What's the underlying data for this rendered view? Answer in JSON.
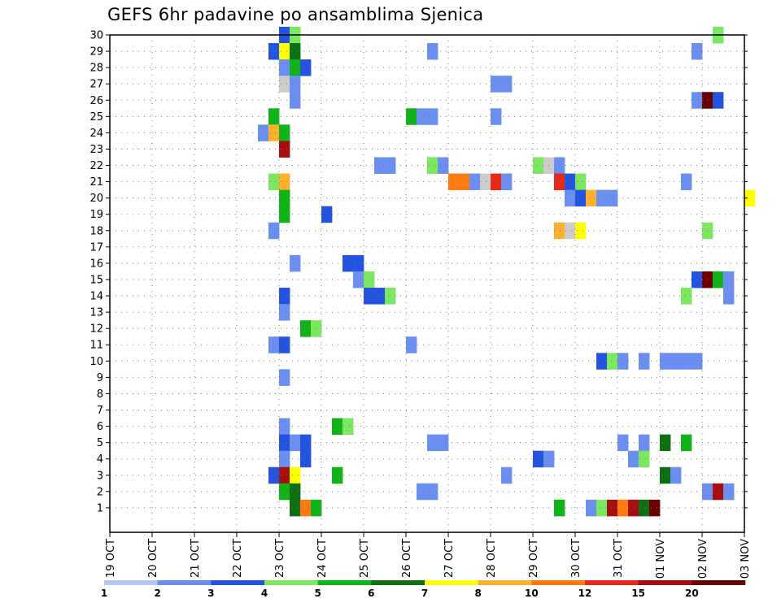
{
  "chart_data": {
    "type": "heatmap",
    "title": "GEFS 6hr padavine po ansamblima Sjenica",
    "xlabel": "",
    "ylabel": "",
    "x_ticks": [
      "19 OCT",
      "20 OCT",
      "21 OCT",
      "22 OCT",
      "23 OCT",
      "24 OCT",
      "25 OCT",
      "26 OCT",
      "27 OCT",
      "28 OCT",
      "29 OCT",
      "30 OCT",
      "31 OCT",
      "01 NOV",
      "02 NOV",
      "03 NOV"
    ],
    "y_ticks": [
      1,
      2,
      3,
      4,
      5,
      6,
      7,
      8,
      9,
      10,
      11,
      12,
      13,
      14,
      15,
      16,
      17,
      18,
      19,
      20,
      21,
      22,
      23,
      24,
      25,
      26,
      27,
      28,
      29,
      30
    ],
    "x_range_days": [
      0,
      15
    ],
    "grid": true,
    "colorbar": {
      "labels": [
        "1",
        "2",
        "3",
        "4",
        "5",
        "6",
        "7",
        "8",
        "10",
        "12",
        "15",
        "20"
      ],
      "colors": [
        "#b3c7f5",
        "#6a8ff0",
        "#2453e0",
        "#7ce860",
        "#10b41a",
        "#0d6e12",
        "#ffff00",
        "#ffb030",
        "#ff7a10",
        "#e8281a",
        "#a50f0f",
        "#6b0000"
      ]
    },
    "cells": [
      [
        4.0,
        30,
        2
      ],
      [
        4.25,
        30,
        3
      ],
      [
        14.25,
        30,
        3
      ],
      [
        3.75,
        29,
        2
      ],
      [
        4.0,
        29,
        6
      ],
      [
        4.25,
        29,
        5
      ],
      [
        7.5,
        29,
        1
      ],
      [
        13.75,
        29,
        1
      ],
      [
        4.0,
        28,
        1
      ],
      [
        4.25,
        28,
        4
      ],
      [
        4.5,
        28,
        2
      ],
      [
        4.0,
        27,
        12
      ],
      [
        4.25,
        27,
        1
      ],
      [
        9.0,
        27,
        1
      ],
      [
        9.25,
        27,
        1
      ],
      [
        4.25,
        26,
        1
      ],
      [
        13.75,
        26,
        1
      ],
      [
        14.0,
        26,
        11
      ],
      [
        14.25,
        26,
        2
      ],
      [
        3.75,
        25,
        4
      ],
      [
        7.0,
        25,
        4
      ],
      [
        7.25,
        25,
        1
      ],
      [
        7.5,
        25,
        1
      ],
      [
        9.0,
        25,
        1
      ],
      [
        3.5,
        24,
        1
      ],
      [
        3.75,
        24,
        7
      ],
      [
        4.0,
        24,
        4
      ],
      [
        4.0,
        23,
        10
      ],
      [
        6.25,
        22,
        1
      ],
      [
        6.5,
        22,
        1
      ],
      [
        7.5,
        22,
        3
      ],
      [
        7.75,
        22,
        1
      ],
      [
        10.0,
        22,
        3
      ],
      [
        10.25,
        22,
        12
      ],
      [
        10.5,
        22,
        1
      ],
      [
        3.75,
        21,
        3
      ],
      [
        4.0,
        21,
        7
      ],
      [
        8.0,
        21,
        8
      ],
      [
        8.25,
        21,
        8
      ],
      [
        8.5,
        21,
        1
      ],
      [
        8.75,
        21,
        12
      ],
      [
        9.0,
        21,
        9
      ],
      [
        9.25,
        21,
        1
      ],
      [
        10.5,
        21,
        9
      ],
      [
        10.75,
        21,
        2
      ],
      [
        11.0,
        21,
        3
      ],
      [
        13.5,
        21,
        1
      ],
      [
        4.0,
        20,
        4
      ],
      [
        10.75,
        20,
        1
      ],
      [
        11.0,
        20,
        2
      ],
      [
        11.25,
        20,
        7
      ],
      [
        11.5,
        20,
        1
      ],
      [
        11.75,
        20,
        1
      ],
      [
        15.0,
        20,
        6
      ],
      [
        4.0,
        19,
        4
      ],
      [
        5.0,
        19,
        2
      ],
      [
        3.75,
        18,
        1
      ],
      [
        10.5,
        18,
        7
      ],
      [
        10.75,
        18,
        12
      ],
      [
        11.0,
        18,
        6
      ],
      [
        14.0,
        18,
        3
      ],
      [
        4.25,
        16,
        1
      ],
      [
        5.5,
        16,
        2
      ],
      [
        5.75,
        16,
        2
      ],
      [
        5.75,
        15,
        1
      ],
      [
        6.0,
        15,
        3
      ],
      [
        13.75,
        15,
        2
      ],
      [
        14.0,
        15,
        11
      ],
      [
        14.25,
        15,
        4
      ],
      [
        14.5,
        15,
        1
      ],
      [
        4.0,
        14,
        2
      ],
      [
        6.0,
        14,
        2
      ],
      [
        6.25,
        14,
        2
      ],
      [
        6.5,
        14,
        3
      ],
      [
        13.5,
        14,
        3
      ],
      [
        14.5,
        14,
        1
      ],
      [
        4.0,
        13,
        1
      ],
      [
        4.5,
        12,
        4
      ],
      [
        4.75,
        12,
        3
      ],
      [
        3.75,
        11,
        1
      ],
      [
        4.0,
        11,
        2
      ],
      [
        7.0,
        11,
        1
      ],
      [
        11.5,
        10,
        2
      ],
      [
        11.75,
        10,
        3
      ],
      [
        12.0,
        10,
        1
      ],
      [
        12.5,
        10,
        1
      ],
      [
        13.25,
        10,
        1
      ],
      [
        13.5,
        10,
        1
      ],
      [
        13.75,
        10,
        1
      ],
      [
        13.0,
        10,
        1
      ],
      [
        4.0,
        9,
        1
      ],
      [
        4.0,
        6,
        1
      ],
      [
        5.25,
        6,
        4
      ],
      [
        5.5,
        6,
        3
      ],
      [
        4.0,
        5,
        2
      ],
      [
        4.25,
        5,
        1
      ],
      [
        4.5,
        5,
        2
      ],
      [
        7.5,
        5,
        1
      ],
      [
        7.75,
        5,
        1
      ],
      [
        12.0,
        5,
        1
      ],
      [
        12.5,
        5,
        1
      ],
      [
        13.0,
        5,
        5
      ],
      [
        13.5,
        5,
        4
      ],
      [
        4.0,
        4,
        1
      ],
      [
        4.5,
        4,
        2
      ],
      [
        10.0,
        4,
        2
      ],
      [
        10.25,
        4,
        1
      ],
      [
        12.25,
        4,
        1
      ],
      [
        12.5,
        4,
        3
      ],
      [
        3.75,
        3,
        2
      ],
      [
        4.0,
        3,
        10
      ],
      [
        4.25,
        3,
        6
      ],
      [
        5.25,
        3,
        4
      ],
      [
        9.25,
        3,
        1
      ],
      [
        13.0,
        3,
        5
      ],
      [
        13.25,
        3,
        1
      ],
      [
        4.0,
        2,
        4
      ],
      [
        4.25,
        2,
        5
      ],
      [
        7.25,
        2,
        1
      ],
      [
        7.5,
        2,
        1
      ],
      [
        14.0,
        2,
        1
      ],
      [
        14.25,
        2,
        10
      ],
      [
        14.5,
        2,
        1
      ],
      [
        4.25,
        1,
        5
      ],
      [
        4.5,
        1,
        8
      ],
      [
        4.75,
        1,
        4
      ],
      [
        10.5,
        1,
        4
      ],
      [
        11.25,
        1,
        1
      ],
      [
        11.5,
        1,
        3
      ],
      [
        11.75,
        1,
        10
      ],
      [
        12.0,
        1,
        8
      ],
      [
        12.25,
        1,
        10
      ],
      [
        12.5,
        1,
        5
      ],
      [
        12.75,
        1,
        11
      ]
    ]
  }
}
